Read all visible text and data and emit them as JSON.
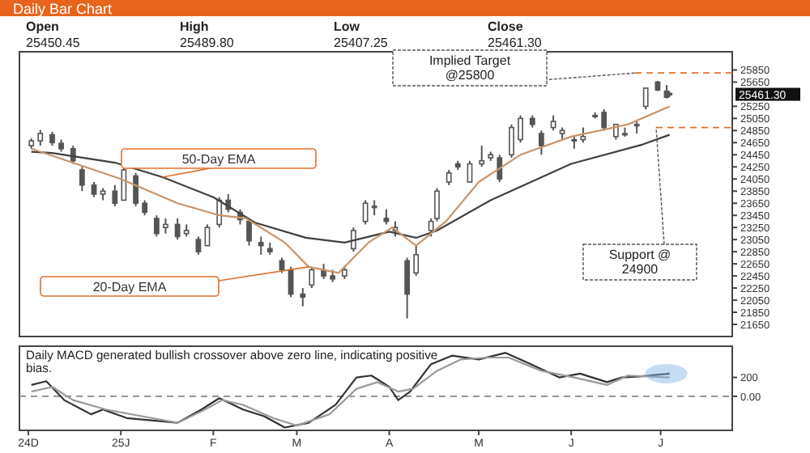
{
  "chart_data": [
    {
      "type": "candlestick",
      "title": "Daily Bar Chart",
      "x": [
        "2024-12-02",
        "2024-12-05",
        "2024-12-09",
        "2024-12-12",
        "2024-12-16",
        "2024-12-19",
        "2024-12-23",
        "2024-12-26",
        "2024-12-30",
        "2025-01-02",
        "2025-01-06",
        "2025-01-09",
        "2025-01-13",
        "2025-01-16",
        "2025-01-20",
        "2025-01-23",
        "2025-01-27",
        "2025-01-30",
        "2025-02-03",
        "2025-02-06",
        "2025-02-10",
        "2025-02-13",
        "2025-02-17",
        "2025-02-20",
        "2025-02-24",
        "2025-02-27",
        "2025-03-03",
        "2025-03-06",
        "2025-03-10",
        "2025-03-13",
        "2025-03-17",
        "2025-03-20",
        "2025-03-24",
        "2025-03-27",
        "2025-03-31",
        "2025-04-03",
        "2025-04-07",
        "2025-04-10",
        "2025-04-15",
        "2025-04-17",
        "2025-04-21",
        "2025-04-24",
        "2025-04-28",
        "2025-05-02",
        "2025-05-05",
        "2025-05-08",
        "2025-05-12",
        "2025-05-15",
        "2025-05-19",
        "2025-05-22",
        "2025-05-26",
        "2025-05-29",
        "2025-06-02",
        "2025-06-05",
        "2025-06-09",
        "2025-06-12",
        "2025-06-16",
        "2025-06-19",
        "2025-06-23",
        "2025-06-26",
        "2025-06-30",
        "2025-07-03",
        "2025-07-04"
      ],
      "ohlc": [
        [
          24600,
          24720,
          24550,
          24680
        ],
        [
          24680,
          24860,
          24600,
          24800
        ],
        [
          24780,
          24830,
          24600,
          24650
        ],
        [
          24640,
          24700,
          24500,
          24550
        ],
        [
          24550,
          24600,
          24300,
          24350
        ],
        [
          24200,
          24250,
          23850,
          23950
        ],
        [
          23950,
          24000,
          23750,
          23800
        ],
        [
          23800,
          23900,
          23700,
          23850
        ],
        [
          23850,
          23950,
          23600,
          23650
        ],
        [
          23700,
          24250,
          23700,
          24200
        ],
        [
          24100,
          24150,
          23600,
          23650
        ],
        [
          23650,
          23700,
          23450,
          23500
        ],
        [
          23400,
          23450,
          23100,
          23150
        ],
        [
          23250,
          23400,
          23150,
          23300
        ],
        [
          23300,
          23400,
          23050,
          23100
        ],
        [
          23150,
          23300,
          23100,
          23200
        ],
        [
          23050,
          23100,
          22800,
          22850
        ],
        [
          22950,
          23300,
          22950,
          23250
        ],
        [
          23300,
          23750,
          23250,
          23700
        ],
        [
          23700,
          23800,
          23500,
          23550
        ],
        [
          23500,
          23550,
          23300,
          23380
        ],
        [
          23350,
          23400,
          22950,
          23030
        ],
        [
          23000,
          23100,
          22800,
          22950
        ],
        [
          22900,
          23000,
          22800,
          22850
        ],
        [
          22700,
          22750,
          22500,
          22550
        ],
        [
          22550,
          22600,
          22100,
          22150
        ],
        [
          22150,
          22250,
          21950,
          22100
        ],
        [
          22300,
          22600,
          22250,
          22550
        ],
        [
          22550,
          22650,
          22400,
          22450
        ],
        [
          22450,
          22550,
          22350,
          22400
        ],
        [
          22450,
          22600,
          22400,
          22550
        ],
        [
          22900,
          23250,
          22850,
          23200
        ],
        [
          23350,
          23700,
          23300,
          23650
        ],
        [
          23600,
          23700,
          23450,
          23600
        ],
        [
          23400,
          23550,
          23300,
          23350
        ],
        [
          23200,
          23350,
          23100,
          23250
        ],
        [
          22700,
          22750,
          21750,
          22150
        ],
        [
          22500,
          22950,
          22450,
          22800
        ],
        [
          23200,
          23400,
          23100,
          23350
        ],
        [
          23400,
          23900,
          23350,
          23850
        ],
        [
          24000,
          24200,
          23950,
          24150
        ],
        [
          24300,
          24350,
          24200,
          24250
        ],
        [
          24000,
          24350,
          24000,
          24300
        ],
        [
          24300,
          24600,
          24250,
          24350
        ],
        [
          24400,
          24500,
          24350,
          24450
        ],
        [
          24400,
          24450,
          24000,
          24050
        ],
        [
          24450,
          24950,
          24400,
          24900
        ],
        [
          24700,
          25100,
          24650,
          25050
        ],
        [
          25050,
          25100,
          24900,
          24950
        ],
        [
          24800,
          24850,
          24450,
          24600
        ],
        [
          24900,
          25100,
          24850,
          25000
        ],
        [
          24800,
          24900,
          24700,
          24850
        ],
        [
          24700,
          24750,
          24550,
          24700
        ],
        [
          24700,
          24900,
          24650,
          24750
        ],
        [
          25100,
          25150,
          25050,
          25100
        ],
        [
          25150,
          25200,
          24850,
          24900
        ],
        [
          24750,
          24950,
          24700,
          24950
        ],
        [
          24800,
          24900,
          24750,
          24800
        ],
        [
          24950,
          25000,
          24800,
          24950
        ],
        [
          25250,
          25550,
          25200,
          25550
        ],
        [
          25650,
          25670,
          25500,
          25520
        ],
        [
          25500,
          25600,
          25380,
          25400
        ],
        [
          25450.45,
          25489.8,
          25407.25,
          25461.3
        ]
      ],
      "color": "#555555",
      "series": [
        {
          "type": "line",
          "name": "50-Day EMA",
          "color": "#404040",
          "x": [
            "2024-12-02",
            "2024-12-09",
            "2024-12-30",
            "2025-01-15",
            "2025-02-01",
            "2025-02-15",
            "2025-03-04",
            "2025-03-17",
            "2025-04-01",
            "2025-04-10",
            "2025-04-17",
            "2025-05-05",
            "2025-06-01",
            "2025-06-25",
            "2025-07-04"
          ],
          "values": [
            24500,
            24480,
            24320,
            24080,
            23750,
            23330,
            23080,
            23000,
            23180,
            23080,
            23200,
            23700,
            24300,
            24620,
            24780
          ]
        },
        {
          "type": "line",
          "name": "20-Day EMA",
          "color": "#c8956a",
          "x": [
            "2024-12-02",
            "2024-12-20",
            "2025-01-01",
            "2025-01-20",
            "2025-02-03",
            "2025-02-12",
            "2025-02-25",
            "2025-03-05",
            "2025-03-15",
            "2025-03-25",
            "2025-04-02",
            "2025-04-10",
            "2025-04-20",
            "2025-05-01",
            "2025-05-15",
            "2025-06-01",
            "2025-06-20",
            "2025-07-04"
          ],
          "values": [
            24550,
            24250,
            24050,
            23650,
            23450,
            23400,
            23000,
            22600,
            22500,
            23000,
            23250,
            22950,
            23350,
            24000,
            24450,
            24750,
            24950,
            25250
          ]
        }
      ],
      "xlim": [
        "2024-11-28",
        "2025-07-25"
      ],
      "ylim": [
        21450,
        26150
      ],
      "yticks": [
        21650,
        21850,
        22050,
        22250,
        22450,
        22650,
        22850,
        23050,
        23250,
        23450,
        23650,
        23850,
        24050,
        24250,
        24450,
        24650,
        24850,
        25050,
        25250,
        25650,
        25850
      ],
      "tick_labels": "y",
      "ref_lines": [
        {
          "axis": "y",
          "value": 25800,
          "label": "Implied Target @25800",
          "color": "#e07030",
          "line_style": "dashed"
        },
        {
          "axis": "y",
          "value": 24900,
          "label": "Support @ 24900",
          "color": "#e07030",
          "line_style": "dashed"
        }
      ],
      "annotations": [
        "Open",
        "High",
        "Low",
        "Close",
        "25450.45",
        "25489.80",
        "25407.25",
        "25461.30",
        "25461.30"
      ]
    },
    {
      "type": "line",
      "series": [
        {
          "color": "#333333",
          "x": [
            "2024-12-02",
            "2024-12-07",
            "2024-12-13",
            "2024-12-22",
            "2024-12-26",
            "2025-01-03",
            "2025-01-20",
            "2025-01-28",
            "2025-02-03",
            "2025-02-11",
            "2025-02-18",
            "2025-02-25",
            "2025-03-05",
            "2025-03-14",
            "2025-03-21",
            "2025-03-26",
            "2025-04-01",
            "2025-04-04",
            "2025-04-08",
            "2025-04-15",
            "2025-04-22",
            "2025-05-01",
            "2025-05-10",
            "2025-05-17",
            "2025-05-28",
            "2025-06-04",
            "2025-06-13",
            "2025-06-18",
            "2025-06-24",
            "2025-07-04"
          ],
          "values": [
            120,
            160,
            -40,
            -190,
            -140,
            -230,
            -280,
            -140,
            -20,
            -140,
            -210,
            -330,
            -280,
            -90,
            200,
            220,
            100,
            -40,
            50,
            340,
            430,
            390,
            460,
            360,
            200,
            240,
            150,
            200,
            210,
            240
          ]
        },
        {
          "color": "#9a9a9a",
          "x": [
            "2024-12-02",
            "2024-12-09",
            "2024-12-16",
            "2024-12-27",
            "2025-01-08",
            "2025-01-20",
            "2025-01-28",
            "2025-02-04",
            "2025-02-11",
            "2025-02-21",
            "2025-03-01",
            "2025-03-12",
            "2025-03-21",
            "2025-03-28",
            "2025-04-04",
            "2025-04-09",
            "2025-04-17",
            "2025-04-25",
            "2025-05-04",
            "2025-05-11",
            "2025-05-22",
            "2025-06-02",
            "2025-06-13",
            "2025-06-20",
            "2025-07-04"
          ],
          "values": [
            50,
            100,
            -40,
            -140,
            -210,
            -280,
            -160,
            -40,
            -90,
            -230,
            -310,
            -190,
            80,
            150,
            50,
            80,
            270,
            390,
            410,
            410,
            270,
            200,
            120,
            220,
            200
          ]
        }
      ],
      "xlim": [
        "2024-11-28",
        "2025-07-25"
      ],
      "xticks": [
        {
          "value": "2024-12-01",
          "label": "24D"
        },
        {
          "value": "2025-01-01",
          "label": "25J"
        },
        {
          "value": "2025-02-01",
          "label": "F"
        },
        {
          "value": "2025-03-01",
          "label": "M"
        },
        {
          "value": "2025-04-01",
          "label": "A"
        },
        {
          "value": "2025-05-01",
          "label": "M"
        },
        {
          "value": "2025-06-01",
          "label": "J"
        },
        {
          "value": "2025-07-01",
          "label": "J"
        }
      ],
      "ylim": [
        -360,
        530
      ],
      "yticks": [
        {
          "value": 0,
          "label": "0.00"
        },
        200
      ],
      "ref_lines": [
        {
          "axis": "y",
          "value": 0,
          "color": "#888888",
          "line_style": "dashed"
        }
      ],
      "annotations": [
        "Daily MACD generated bullish crossover above zero line, indicating positive bias."
      ]
    }
  ]
}
